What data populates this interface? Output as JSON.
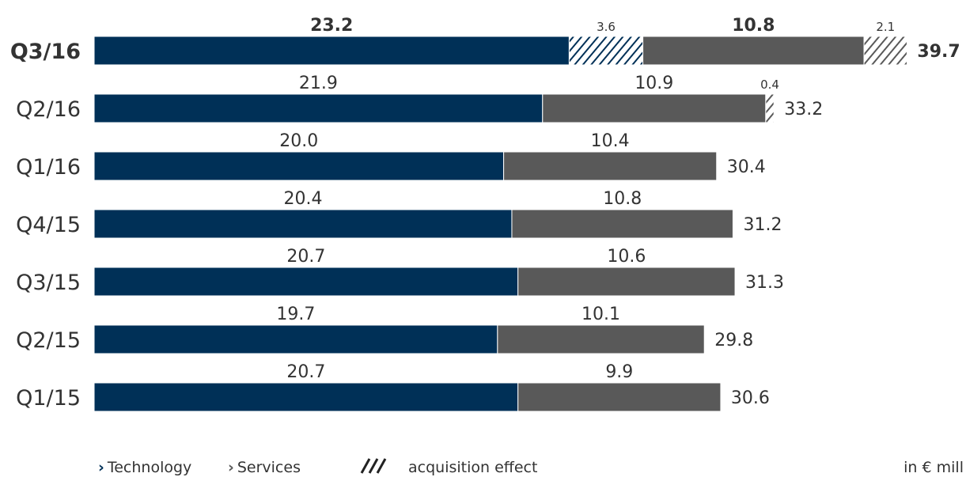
{
  "chart_data": {
    "type": "bar",
    "orientation": "horizontal",
    "stacked": true,
    "categories": [
      "Q3/16",
      "Q2/16",
      "Q1/16",
      "Q4/15",
      "Q3/15",
      "Q2/15",
      "Q1/15"
    ],
    "series": [
      {
        "name": "Technology",
        "values": [
          23.2,
          21.9,
          20.0,
          20.4,
          20.7,
          19.7,
          20.7
        ],
        "value_labels": [
          "23.2",
          "21.9",
          "20.0",
          "20.4",
          "20.7",
          "19.7",
          "20.7"
        ],
        "color": "#003057",
        "hatched": false
      },
      {
        "name": "acquisition effect",
        "values": [
          3.6,
          0,
          0,
          0,
          0,
          0,
          0
        ],
        "value_labels": [
          "3.6",
          "",
          "",
          "",
          "",
          "",
          ""
        ],
        "color": "#003057",
        "hatched": true
      },
      {
        "name": "Services",
        "values": [
          10.8,
          10.9,
          10.4,
          10.8,
          10.6,
          10.1,
          9.9
        ],
        "value_labels": [
          "10.8",
          "10.9",
          "10.4",
          "10.8",
          "10.6",
          "10.1",
          "9.9"
        ],
        "color": "#595959",
        "hatched": false
      },
      {
        "name": "acquisition effect",
        "values": [
          2.1,
          0.4,
          0,
          0,
          0,
          0,
          0
        ],
        "value_labels": [
          "2.1",
          "0.4",
          "",
          "",
          "",
          "",
          ""
        ],
        "color": "#595959",
        "hatched": true
      }
    ],
    "totals": [
      39.7,
      33.2,
      30.4,
      31.2,
      31.3,
      29.8,
      30.6
    ],
    "total_labels": [
      "39.7",
      "33.2",
      "30.4",
      "31.2",
      "31.3",
      "29.8",
      "30.6"
    ],
    "highlight_category": "Q3/16",
    "xlim": [
      0,
      42
    ],
    "grid": false,
    "legend_position": "bottom-left"
  },
  "legend": {
    "technology": "Technology",
    "services": "Services",
    "acquisition": "acquisition effect"
  },
  "unit_note": "in € mill"
}
